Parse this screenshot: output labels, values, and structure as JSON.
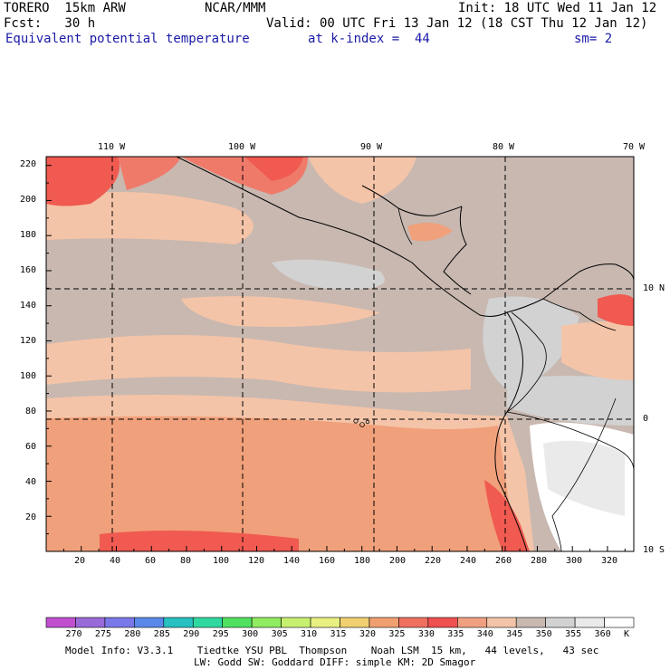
{
  "header": {
    "model": "TORERO  15km ARW",
    "org": "NCAR/MMM",
    "init": "Init: 18 UTC Wed 11 Jan 12",
    "fcst": "Fcst:   30 h",
    "valid": "Valid: 00 UTC Fri 13 Jan 12 (18 CST Thu 12 Jan 12)",
    "field": "Equivalent potential temperature",
    "level": "at k-index =  44",
    "smooth": "sm= 2"
  },
  "map": {
    "lon_labels": [
      "110 W",
      "100 W",
      "90 W",
      "80 W",
      "70 W"
    ],
    "lat_labels": [
      "10 N",
      "0",
      "10 S"
    ],
    "y_ticks": [
      "20",
      "40",
      "60",
      "80",
      "100",
      "120",
      "140",
      "160",
      "180",
      "200",
      "220"
    ],
    "x_ticks": [
      "20",
      "40",
      "60",
      "80",
      "100",
      "120",
      "140",
      "160",
      "180",
      "200",
      "220",
      "240",
      "260",
      "280",
      "300",
      "320"
    ],
    "grid_x_range": [
      0,
      335
    ],
    "grid_y_range": [
      0,
      225
    ],
    "colors": {
      "c320": "#f0a07a",
      "c330": "#f05a50",
      "c335": "#f07a6a",
      "c340": "#f4c4a8",
      "c345": "#c8b8b0",
      "c350": "#d2d2d2",
      "c360": "#ffffff"
    }
  },
  "colorbar": {
    "labels": [
      "270",
      "275",
      "280",
      "285",
      "290",
      "295",
      "300",
      "305",
      "310",
      "315",
      "320",
      "325",
      "330",
      "335",
      "340",
      "345",
      "350",
      "355",
      "360",
      "K"
    ],
    "colors": [
      "#c050d0",
      "#9a6ad8",
      "#7a78e8",
      "#5a88e8",
      "#28c0c0",
      "#30d8a0",
      "#50e060",
      "#90ec60",
      "#c8f070",
      "#e8f080",
      "#f0d070",
      "#f0a070",
      "#f07060",
      "#f05050",
      "#f0a080",
      "#f4c4a8",
      "#c8b8b0",
      "#d2d2d2",
      "#eaeaea",
      "#ffffff"
    ]
  },
  "footer": {
    "line1": "Model Info: V3.3.1    Tiedtke YSU PBL  Thompson    Noah LSM  15 km,   44 levels,   43 sec",
    "line2": "LW: Godd SW: Goddard DIFF: simple KM: 2D Smagor"
  }
}
